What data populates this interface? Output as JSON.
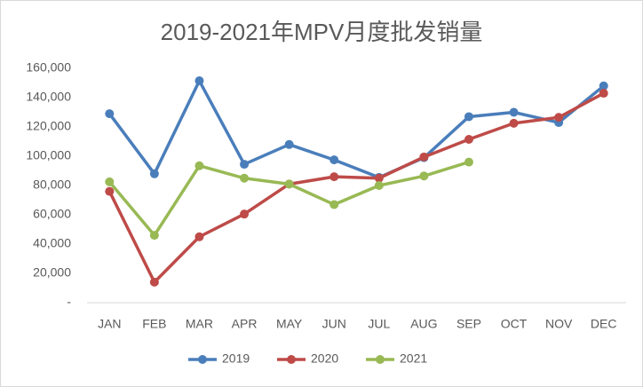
{
  "chart_data": {
    "type": "line",
    "title": "2019-2021年MPV月度批发销量",
    "categories": [
      "JAN",
      "FEB",
      "MAR",
      "APR",
      "MAY",
      "JUN",
      "JUL",
      "AUG",
      "SEP",
      "OCT",
      "NOV",
      "DEC"
    ],
    "series": [
      {
        "name": "2019",
        "color": "#4a7ebb",
        "values": [
          129000,
          88000,
          151500,
          94500,
          108000,
          97500,
          85500,
          99000,
          127000,
          130000,
          123000,
          148000
        ]
      },
      {
        "name": "2020",
        "color": "#be4b48",
        "values": [
          76000,
          14000,
          45000,
          60500,
          81000,
          86000,
          85000,
          99500,
          111500,
          122500,
          126500,
          143000
        ]
      },
      {
        "name": "2021",
        "color": "#98b954",
        "values": [
          82500,
          46000,
          93500,
          85000,
          81000,
          67000,
          80000,
          86500,
          96000,
          null,
          null,
          null
        ]
      }
    ],
    "ylim": [
      0,
      160000
    ],
    "yticks": [
      {
        "value": 0,
        "label": "-"
      },
      {
        "value": 20000,
        "label": "20,000"
      },
      {
        "value": 40000,
        "label": "40,000"
      },
      {
        "value": 60000,
        "label": "60,000"
      },
      {
        "value": 80000,
        "label": "80,000"
      },
      {
        "value": 100000,
        "label": "100,000"
      },
      {
        "value": 120000,
        "label": "120,000"
      },
      {
        "value": 140000,
        "label": "140,000"
      },
      {
        "value": 160000,
        "label": "160,000"
      }
    ],
    "grid": false,
    "legend": "bottom"
  }
}
